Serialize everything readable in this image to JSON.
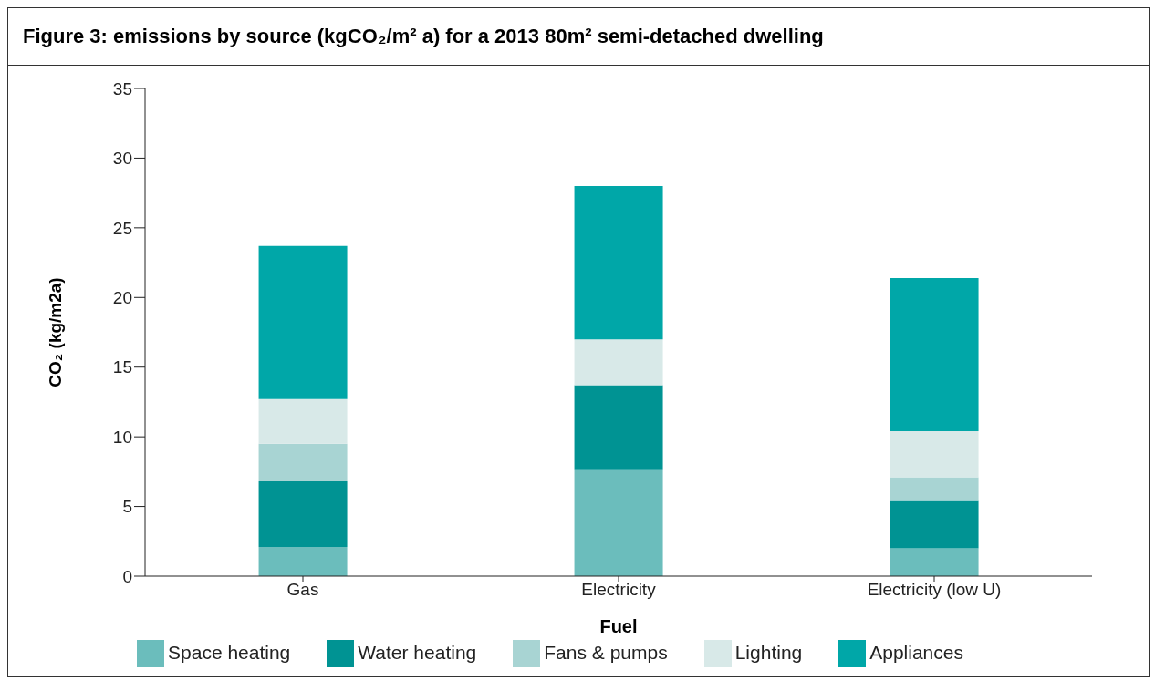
{
  "chart_data": {
    "type": "bar",
    "title": "Figure 3: emissions by source (kgCO₂/m² a) for a 2013 80m² semi-detached dwelling",
    "xlabel": "Fuel",
    "ylabel": "CO₂ (kg/m2a)",
    "categories": [
      "Gas",
      "Electricity",
      "Electricity (low U)"
    ],
    "stacked": true,
    "series": [
      {
        "name": "Space heating",
        "color": "#6bbdbc",
        "values": [
          2.1,
          7.6,
          2.0
        ]
      },
      {
        "name": "Water heating",
        "color": "#009393",
        "values": [
          4.7,
          6.1,
          3.4
        ]
      },
      {
        "name": "Fans & pumps",
        "color": "#a8d4d3",
        "values": [
          2.7,
          0,
          1.7
        ]
      },
      {
        "name": "Lighting",
        "color": "#d8e9e8",
        "values": [
          3.2,
          3.3,
          3.3
        ]
      },
      {
        "name": "Appliances",
        "color": "#00a7a8",
        "values": [
          11.0,
          11.0,
          11.0
        ]
      }
    ],
    "ylim": [
      0,
      35
    ],
    "yticks": [
      0,
      5,
      10,
      15,
      20,
      25,
      30,
      35
    ],
    "grid": false,
    "legend": "bottom"
  }
}
